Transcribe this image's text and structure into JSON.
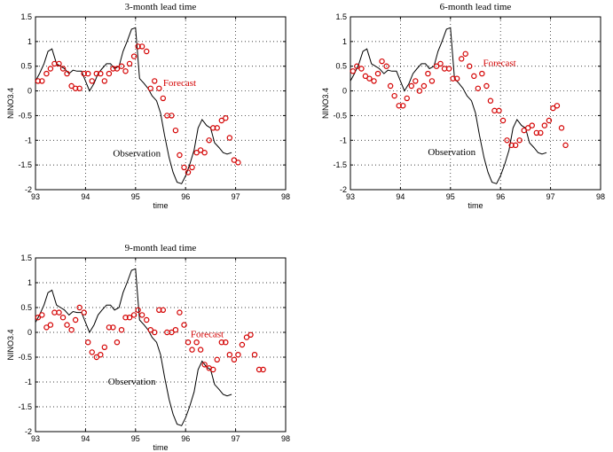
{
  "chart_data": [
    {
      "type": "scatter",
      "title": "3-month lead time",
      "xlabel": "time",
      "ylabel": "NINO3.4",
      "xlim": [
        93,
        98
      ],
      "ylim": [
        -2,
        1.5
      ],
      "xticks": [
        93,
        94,
        95,
        96,
        97,
        98
      ],
      "yticks": [
        -2,
        -1.5,
        -1,
        -0.5,
        0,
        0.5,
        1,
        1.5
      ],
      "grid": true,
      "annotations": [
        {
          "text": "Forecast",
          "x": 95.55,
          "y": 0.1,
          "color": "#d40000"
        },
        {
          "text": "Observation",
          "x": 94.55,
          "y": -1.33,
          "color": "#000000"
        }
      ],
      "series": [
        {
          "name": "Observation",
          "kind": "line",
          "color": "#000000",
          "x": [
            93.0,
            93.08,
            93.17,
            93.25,
            93.33,
            93.42,
            93.5,
            93.58,
            93.67,
            93.75,
            93.83,
            93.92,
            94.0,
            94.08,
            94.17,
            94.25,
            94.33,
            94.42,
            94.5,
            94.58,
            94.67,
            94.75,
            94.83,
            94.92,
            95.0,
            95.08,
            95.17,
            95.25,
            95.33,
            95.42,
            95.5,
            95.58,
            95.67,
            95.75,
            95.83,
            95.92,
            96.0,
            96.08,
            96.17,
            96.25,
            96.33,
            96.42,
            96.5,
            96.58,
            96.67,
            96.75,
            96.83,
            96.92
          ],
          "y": [
            0.2,
            0.35,
            0.55,
            0.8,
            0.85,
            0.55,
            0.5,
            0.45,
            0.35,
            0.42,
            0.4,
            0.4,
            0.2,
            0.0,
            0.15,
            0.35,
            0.45,
            0.55,
            0.55,
            0.45,
            0.5,
            0.8,
            1.0,
            1.25,
            1.28,
            0.25,
            0.15,
            0.05,
            -0.1,
            -0.2,
            -0.45,
            -0.9,
            -1.35,
            -1.65,
            -1.85,
            -1.88,
            -1.72,
            -1.5,
            -1.2,
            -0.75,
            -0.58,
            -0.7,
            -0.75,
            -1.05,
            -1.15,
            -1.25,
            -1.28,
            -1.25
          ]
        },
        {
          "name": "Forecast",
          "kind": "scatter",
          "color": "#d40000",
          "x": [
            93.05,
            93.13,
            93.22,
            93.3,
            93.38,
            93.47,
            93.55,
            93.63,
            93.72,
            93.8,
            93.88,
            93.97,
            94.05,
            94.13,
            94.22,
            94.3,
            94.38,
            94.47,
            94.55,
            94.63,
            94.72,
            94.8,
            94.88,
            94.97,
            95.05,
            95.13,
            95.22,
            95.3,
            95.38,
            95.47,
            95.55,
            95.63,
            95.72,
            95.8,
            95.88,
            95.97,
            96.05,
            96.13,
            96.22,
            96.3,
            96.38,
            96.47,
            96.55,
            96.63,
            96.72,
            96.8,
            96.88,
            96.97,
            97.05
          ],
          "y": [
            0.2,
            0.2,
            0.35,
            0.45,
            0.55,
            0.55,
            0.45,
            0.35,
            0.1,
            0.05,
            0.05,
            0.35,
            0.35,
            0.2,
            0.35,
            0.35,
            0.2,
            0.35,
            0.45,
            0.45,
            0.5,
            0.4,
            0.55,
            0.7,
            0.9,
            0.9,
            0.8,
            0.05,
            0.2,
            0.05,
            -0.15,
            -0.5,
            -0.5,
            -0.8,
            -1.3,
            -1.55,
            -1.65,
            -1.55,
            -1.25,
            -1.2,
            -1.25,
            -1.0,
            -0.75,
            -0.75,
            -0.6,
            -0.55,
            -0.95,
            -1.4,
            -1.45
          ]
        }
      ]
    },
    {
      "type": "scatter",
      "title": "6-month lead time",
      "xlabel": "time",
      "ylabel": "NINO3.4",
      "xlim": [
        93,
        98
      ],
      "ylim": [
        -2,
        1.5
      ],
      "xticks": [
        93,
        94,
        95,
        96,
        97,
        98
      ],
      "yticks": [
        -2,
        -1.5,
        -1,
        -0.5,
        0,
        0.5,
        1,
        1.5
      ],
      "grid": true,
      "annotations": [
        {
          "text": "Forecast",
          "x": 95.65,
          "y": 0.5,
          "color": "#d40000"
        },
        {
          "text": "Observation",
          "x": 94.55,
          "y": -1.3,
          "color": "#000000"
        }
      ],
      "series": [
        {
          "name": "Observation",
          "kind": "line",
          "color": "#000000",
          "x": [
            93.0,
            93.08,
            93.17,
            93.25,
            93.33,
            93.42,
            93.5,
            93.58,
            93.67,
            93.75,
            93.83,
            93.92,
            94.0,
            94.08,
            94.17,
            94.25,
            94.33,
            94.42,
            94.5,
            94.58,
            94.67,
            94.75,
            94.83,
            94.92,
            95.0,
            95.08,
            95.17,
            95.25,
            95.33,
            95.42,
            95.5,
            95.58,
            95.67,
            95.75,
            95.83,
            95.92,
            96.0,
            96.08,
            96.17,
            96.25,
            96.33,
            96.42,
            96.5,
            96.58,
            96.67,
            96.75,
            96.83,
            96.92
          ],
          "y": [
            0.2,
            0.35,
            0.55,
            0.8,
            0.85,
            0.55,
            0.5,
            0.45,
            0.35,
            0.42,
            0.4,
            0.4,
            0.2,
            0.0,
            0.15,
            0.35,
            0.45,
            0.55,
            0.55,
            0.45,
            0.5,
            0.8,
            1.0,
            1.25,
            1.28,
            0.25,
            0.15,
            0.05,
            -0.1,
            -0.2,
            -0.45,
            -0.9,
            -1.35,
            -1.65,
            -1.85,
            -1.88,
            -1.72,
            -1.5,
            -1.2,
            -0.75,
            -0.58,
            -0.7,
            -0.75,
            -1.05,
            -1.15,
            -1.25,
            -1.28,
            -1.25
          ]
        },
        {
          "name": "Forecast",
          "kind": "scatter",
          "color": "#d40000",
          "x": [
            93.05,
            93.13,
            93.22,
            93.3,
            93.38,
            93.47,
            93.55,
            93.63,
            93.72,
            93.8,
            93.88,
            93.97,
            94.05,
            94.13,
            94.22,
            94.3,
            94.38,
            94.47,
            94.55,
            94.63,
            94.72,
            94.8,
            94.88,
            94.97,
            95.05,
            95.13,
            95.22,
            95.3,
            95.38,
            95.47,
            95.55,
            95.63,
            95.72,
            95.8,
            95.88,
            95.97,
            96.05,
            96.13,
            96.22,
            96.3,
            96.38,
            96.47,
            96.55,
            96.63,
            96.72,
            96.8,
            96.88,
            96.97,
            97.05,
            97.13,
            97.22,
            97.3
          ],
          "y": [
            0.4,
            0.5,
            0.45,
            0.3,
            0.25,
            0.2,
            0.35,
            0.6,
            0.5,
            0.1,
            -0.1,
            -0.3,
            -0.3,
            -0.15,
            0.1,
            0.2,
            0.0,
            0.1,
            0.35,
            0.2,
            0.5,
            0.55,
            0.45,
            0.45,
            0.25,
            0.25,
            0.65,
            0.75,
            0.5,
            0.3,
            0.05,
            0.35,
            0.1,
            -0.2,
            -0.4,
            -0.4,
            -0.6,
            -1.0,
            -1.1,
            -1.1,
            -1.0,
            -0.8,
            -0.75,
            -0.7,
            -0.85,
            -0.85,
            -0.7,
            -0.6,
            -0.35,
            -0.3,
            -0.75,
            -1.1
          ]
        }
      ]
    },
    {
      "type": "scatter",
      "title": "9-month lead time",
      "xlabel": "time",
      "ylabel": "NINO3.4",
      "xlim": [
        93,
        98
      ],
      "ylim": [
        -2,
        1.5
      ],
      "xticks": [
        93,
        94,
        95,
        96,
        97,
        98
      ],
      "yticks": [
        -2,
        -1.5,
        -1,
        -0.5,
        0,
        0.5,
        1,
        1.5
      ],
      "grid": true,
      "annotations": [
        {
          "text": "Forecast",
          "x": 96.1,
          "y": -0.1,
          "color": "#d40000"
        },
        {
          "text": "Observation",
          "x": 94.45,
          "y": -1.05,
          "color": "#000000"
        }
      ],
      "series": [
        {
          "name": "Observation",
          "kind": "line",
          "color": "#000000",
          "x": [
            93.0,
            93.08,
            93.17,
            93.25,
            93.33,
            93.42,
            93.5,
            93.58,
            93.67,
            93.75,
            93.83,
            93.92,
            94.0,
            94.08,
            94.17,
            94.25,
            94.33,
            94.42,
            94.5,
            94.58,
            94.67,
            94.75,
            94.83,
            94.92,
            95.0,
            95.08,
            95.17,
            95.25,
            95.33,
            95.42,
            95.5,
            95.58,
            95.67,
            95.75,
            95.83,
            95.92,
            96.0,
            96.08,
            96.17,
            96.25,
            96.33,
            96.42,
            96.5,
            96.58,
            96.67,
            96.75,
            96.83,
            96.92
          ],
          "y": [
            0.2,
            0.35,
            0.55,
            0.8,
            0.85,
            0.55,
            0.5,
            0.45,
            0.35,
            0.42,
            0.4,
            0.4,
            0.2,
            0.0,
            0.15,
            0.35,
            0.45,
            0.55,
            0.55,
            0.45,
            0.5,
            0.8,
            1.0,
            1.25,
            1.28,
            0.25,
            0.15,
            0.05,
            -0.1,
            -0.2,
            -0.45,
            -0.9,
            -1.35,
            -1.65,
            -1.85,
            -1.88,
            -1.72,
            -1.5,
            -1.2,
            -0.75,
            -0.58,
            -0.7,
            -0.75,
            -1.05,
            -1.15,
            -1.25,
            -1.28,
            -1.25
          ]
        },
        {
          "name": "Forecast",
          "kind": "scatter",
          "color": "#d40000",
          "x": [
            93.05,
            93.13,
            93.22,
            93.3,
            93.38,
            93.47,
            93.55,
            93.63,
            93.72,
            93.8,
            93.88,
            93.97,
            94.05,
            94.13,
            94.22,
            94.3,
            94.38,
            94.47,
            94.55,
            94.63,
            94.72,
            94.8,
            94.88,
            94.97,
            95.05,
            95.13,
            95.22,
            95.3,
            95.38,
            95.47,
            95.55,
            95.63,
            95.72,
            95.8,
            95.88,
            95.97,
            96.05,
            96.13,
            96.22,
            96.3,
            96.38,
            96.47,
            96.55,
            96.63,
            96.72,
            96.8,
            96.88,
            96.97,
            97.05,
            97.13,
            97.22,
            97.3,
            97.38,
            97.47,
            97.55
          ],
          "y": [
            0.3,
            0.35,
            0.1,
            0.15,
            0.4,
            0.4,
            0.3,
            0.15,
            0.05,
            0.25,
            0.5,
            0.4,
            -0.2,
            -0.4,
            -0.5,
            -0.45,
            -0.3,
            0.1,
            0.1,
            -0.2,
            0.05,
            0.3,
            0.3,
            0.35,
            0.45,
            0.35,
            0.25,
            0.05,
            0.0,
            0.45,
            0.45,
            0.0,
            0.0,
            0.05,
            0.4,
            0.15,
            -0.2,
            -0.35,
            -0.2,
            -0.35,
            -0.65,
            -0.72,
            -0.75,
            -0.55,
            -0.2,
            -0.2,
            -0.45,
            -0.55,
            -0.45,
            -0.25,
            -0.1,
            -0.05,
            -0.45,
            -0.75,
            -0.75
          ]
        }
      ]
    }
  ]
}
